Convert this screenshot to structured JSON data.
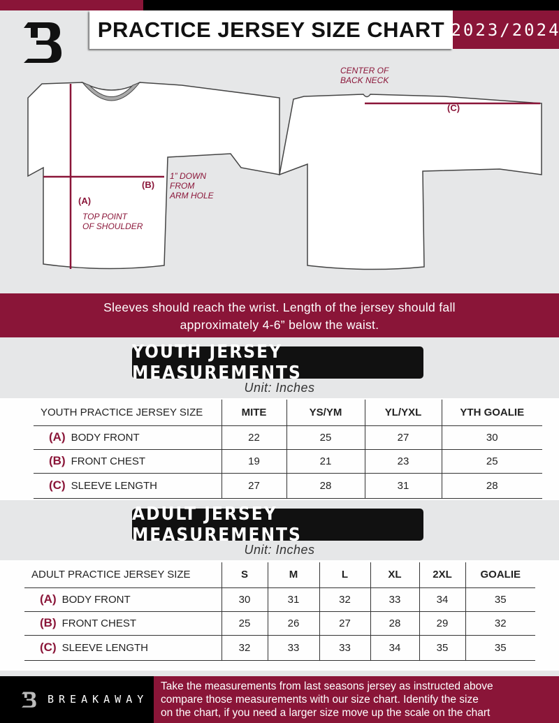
{
  "header": {
    "title": "PRACTICE JERSEY SIZE CHART",
    "season": "2023/2024",
    "logo_letter": "B"
  },
  "diagram": {
    "label_a": "(A)",
    "label_b": "(B)",
    "label_c": "(C)",
    "note_top_point_1": "TOP POINT",
    "note_top_point_2": "OF SHOULDER",
    "note_arm_1": "1” DOWN",
    "note_arm_2": "FROM",
    "note_arm_3": "ARM HOLE",
    "note_neck_1": "CENTER OF",
    "note_neck_2": "BACK NECK"
  },
  "band": {
    "line1": "Sleeves should reach the wrist. Length of the jersey should fall",
    "line2": "approximately 4-6” below the waist."
  },
  "youth": {
    "heading": "YOUTH JERSEY MEASUREMENTS",
    "unit": "Unit: Inches",
    "columns": [
      "YOUTH PRACTICE JERSEY SIZE",
      "MITE",
      "YS/YM",
      "YL/YXL",
      "YTH GOALIE"
    ],
    "rows": [
      {
        "key": "(A)",
        "label": "BODY FRONT",
        "values": [
          "22",
          "25",
          "27",
          "30"
        ]
      },
      {
        "key": "(B)",
        "label": "FRONT CHEST",
        "values": [
          "19",
          "21",
          "23",
          "25"
        ]
      },
      {
        "key": "(C)",
        "label": "SLEEVE LENGTH",
        "values": [
          "27",
          "28",
          "31",
          "28"
        ]
      }
    ]
  },
  "adult": {
    "heading": "ADULT JERSEY MEASUREMENTS",
    "unit": "Unit: Inches",
    "columns": [
      "ADULT PRACTICE JERSEY SIZE",
      "S",
      "M",
      "L",
      "XL",
      "2XL",
      "GOALIE"
    ],
    "rows": [
      {
        "key": "(A)",
        "label": "BODY FRONT",
        "values": [
          "30",
          "31",
          "32",
          "33",
          "34",
          "35"
        ]
      },
      {
        "key": "(B)",
        "label": "FRONT CHEST",
        "values": [
          "25",
          "26",
          "27",
          "28",
          "29",
          "32"
        ]
      },
      {
        "key": "(C)",
        "label": "SLEEVE LENGTH",
        "values": [
          "32",
          "33",
          "33",
          "34",
          "35",
          "35"
        ]
      }
    ]
  },
  "footer": {
    "brand": "BREAKAWAY",
    "line1": "Take the measurements from last seasons jersey as instructed above",
    "line2": "compare those measurements  with our size chart. Identify the size",
    "line3": "on the chart, if you need a larger size move up the scale on the chart"
  },
  "colors": {
    "accent": "#8a1538",
    "dark": "#111111",
    "background": "#e6e7e8"
  }
}
